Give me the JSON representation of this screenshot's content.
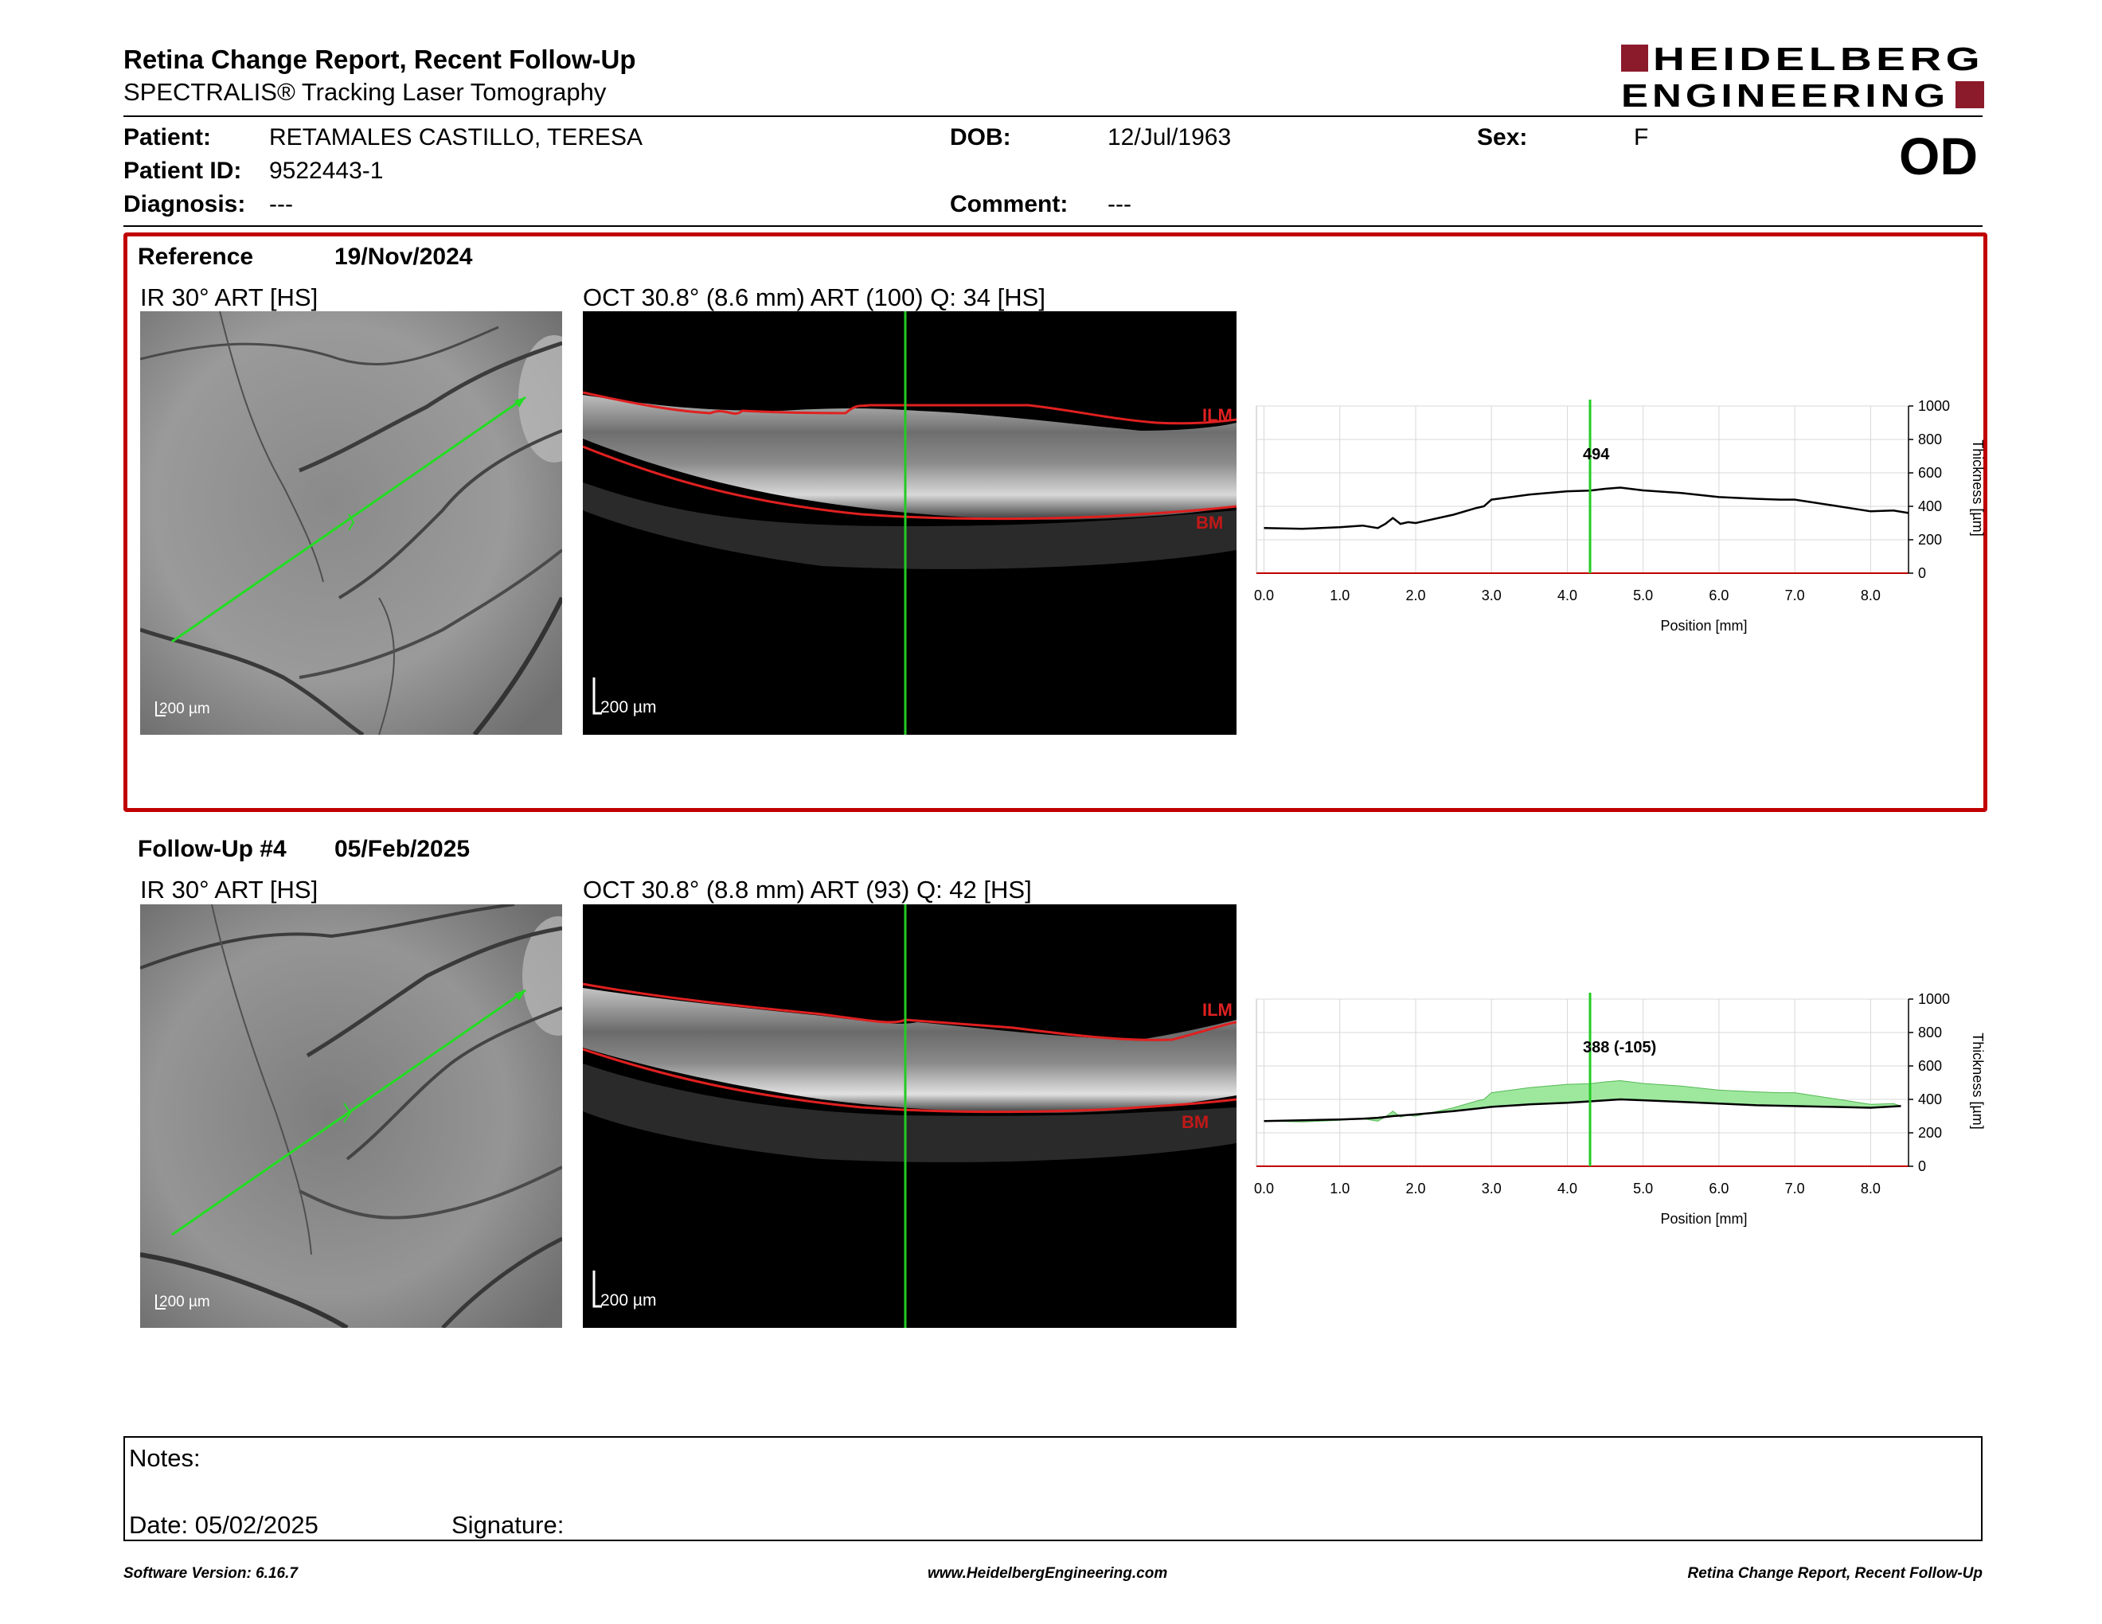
{
  "header": {
    "title": "Retina Change Report, Recent Follow-Up",
    "subtitle": "SPECTRALIS® Tracking Laser Tomography",
    "logo_line1": "HEIDELBERG",
    "logo_line2": "ENGINEERING",
    "logo_color": "#8b1a2b"
  },
  "patient": {
    "patient_label": "Patient:",
    "patient_value": "RETAMALES CASTILLO, TERESA",
    "dob_label": "DOB:",
    "dob_value": "12/Jul/1963",
    "sex_label": "Sex:",
    "sex_value": "F",
    "id_label": "Patient ID:",
    "id_value": "9522443-1",
    "diagnosis_label": "Diagnosis:",
    "diagnosis_value": "---",
    "comment_label": "Comment:",
    "comment_value": "---",
    "eye": "OD"
  },
  "reference": {
    "label": "Reference",
    "date": "19/Nov/2024",
    "ir_title": "IR 30° ART [HS]",
    "oct_title": "OCT 30.8° (8.6 mm) ART (100) Q: 34 [HS]",
    "scale_ir": "200 µm",
    "scale_oct": "200 µm",
    "ilm": "ILM",
    "bm": "BM",
    "readout": "494"
  },
  "followup": {
    "label": "Follow-Up #4",
    "date": "05/Feb/2025",
    "ir_title": "IR 30° ART [HS]",
    "oct_title": "OCT 30.8° (8.8 mm) ART (93) Q: 42 [HS]",
    "scale_ir": "200 µm",
    "scale_oct": "200 µm",
    "ilm": "ILM",
    "bm": "BM",
    "readout": "388 (-105)"
  },
  "colors": {
    "accent_red": "#c00000",
    "ilm_bm_red": "#e02020",
    "marker_green": "#22cc22",
    "fill_green": "#9ee89e"
  },
  "chart_data": [
    {
      "type": "line",
      "xlabel": "Position [mm]",
      "ylabel": "Thickness [µm]",
      "xlim": [
        -0.1,
        8.5
      ],
      "ylim": [
        0,
        1000
      ],
      "xticks": [
        "0.0",
        "1.0",
        "2.0",
        "3.0",
        "4.0",
        "5.0",
        "6.0",
        "7.0",
        "8.0"
      ],
      "xtick_values": [
        0,
        1,
        2,
        3,
        4,
        5,
        6,
        7,
        8
      ],
      "yticks": [
        "0",
        "200",
        "400",
        "600",
        "800",
        "1000"
      ],
      "ytick_values": [
        0,
        200,
        400,
        600,
        800,
        1000
      ],
      "marker_x": 4.3,
      "series": [
        {
          "x": [
            0,
            0.5,
            1.0,
            1.3,
            1.5,
            1.6,
            1.7,
            1.8,
            1.9,
            2.0,
            2.5,
            2.8,
            2.9,
            3.0,
            3.5,
            4.0,
            4.3,
            4.5,
            4.7,
            5.0,
            5.5,
            6.0,
            6.5,
            6.8,
            7.0,
            7.5,
            8.0,
            8.3,
            8.5
          ],
          "y": [
            270,
            265,
            275,
            285,
            270,
            295,
            330,
            295,
            305,
            300,
            350,
            390,
            400,
            440,
            470,
            490,
            494,
            505,
            512,
            495,
            480,
            455,
            445,
            440,
            440,
            405,
            370,
            375,
            360
          ]
        }
      ],
      "grid": true
    },
    {
      "type": "area",
      "xlabel": "Position [mm]",
      "ylabel": "Thickness [µm]",
      "xlim": [
        -0.1,
        8.5
      ],
      "ylim": [
        0,
        1000
      ],
      "xticks": [
        "0.0",
        "1.0",
        "2.0",
        "3.0",
        "4.0",
        "5.0",
        "6.0",
        "7.0",
        "8.0"
      ],
      "xtick_values": [
        0,
        1,
        2,
        3,
        4,
        5,
        6,
        7,
        8
      ],
      "yticks": [
        "0",
        "200",
        "400",
        "600",
        "800",
        "1000"
      ],
      "ytick_values": [
        0,
        200,
        400,
        600,
        800,
        1000
      ],
      "marker_x": 4.3,
      "series": [
        {
          "x": [
            0,
            0.5,
            1.0,
            1.3,
            1.5,
            1.7,
            2.0,
            2.5,
            2.8,
            3.0,
            3.5,
            4.0,
            4.3,
            4.7,
            5.0,
            5.5,
            6.0,
            6.5,
            7.0,
            7.5,
            8.0,
            8.4
          ],
          "y": [
            270,
            275,
            280,
            285,
            290,
            300,
            310,
            330,
            345,
            355,
            370,
            380,
            388,
            400,
            395,
            385,
            375,
            365,
            360,
            355,
            350,
            360
          ]
        },
        {
          "x": [
            0,
            0.5,
            1.0,
            1.3,
            1.5,
            1.6,
            1.7,
            1.8,
            1.9,
            2.0,
            2.5,
            2.8,
            2.9,
            3.0,
            3.5,
            4.0,
            4.3,
            4.5,
            4.7,
            5.0,
            5.5,
            6.0,
            6.5,
            6.8,
            7.0,
            7.5,
            8.0,
            8.3,
            8.4
          ],
          "y": [
            270,
            265,
            275,
            285,
            270,
            295,
            330,
            295,
            305,
            300,
            350,
            390,
            400,
            440,
            470,
            490,
            494,
            505,
            512,
            495,
            480,
            455,
            445,
            440,
            440,
            405,
            370,
            375,
            360
          ]
        }
      ],
      "grid": true
    }
  ],
  "notes": {
    "notes_label": "Notes:",
    "date_label": "Date: 05/02/2025",
    "signature_label": "Signature:"
  },
  "footer": {
    "software": "Software Version: 6.16.7",
    "website": "www.HeidelbergEngineering.com",
    "report_name": "Retina Change Report, Recent Follow-Up"
  }
}
